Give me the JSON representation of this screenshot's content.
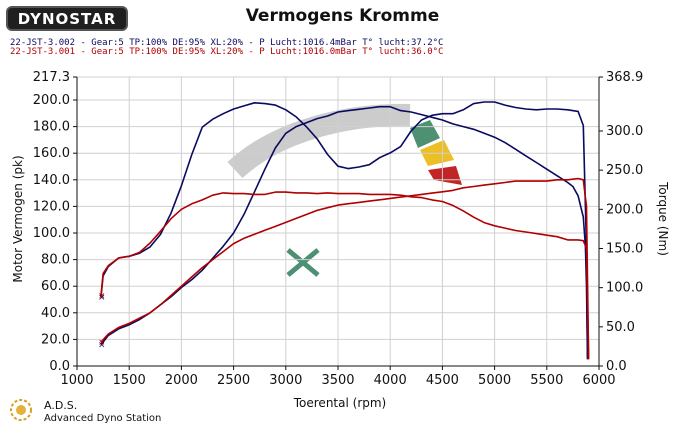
{
  "logo": {
    "text": "DYNOSTAR"
  },
  "footer": {
    "line1": "A.D.S.",
    "line2": "Advanced Dyno Station"
  },
  "chart_data": {
    "type": "line",
    "title": "Vermogens Kromme",
    "xlabel": "Toerental (rpm)",
    "ylabel": "Motor Vermogen (pk)",
    "y2label": "Torque (Nm)",
    "xlim": [
      1000,
      6000
    ],
    "ylim": [
      0.0,
      217.3
    ],
    "y2lim": [
      0.0,
      368.9
    ],
    "xticks": [
      "1000",
      "1500",
      "2000",
      "2500",
      "3000",
      "3500",
      "4000",
      "4500",
      "5000",
      "5500",
      "6000"
    ],
    "yticks": [
      "0.0",
      "20.0",
      "40.0",
      "60.0",
      "80.0",
      "100.0",
      "120.0",
      "140.0",
      "160.0",
      "180.0",
      "200.0",
      "217.3"
    ],
    "y2ticks": [
      "0.0",
      "50.0",
      "100.0",
      "150.0",
      "200.0",
      "250.0",
      "300.0",
      "368.9"
    ],
    "grid": true,
    "legend": [
      {
        "text": "22-JST-3.002 - Gear:5 TP:100% DE:95% XL:20%   - P Lucht:1016.4mBar T° lucht:37.2°C",
        "color": "#0a0a60"
      },
      {
        "text": "22-JST-3.001 - Gear:5 TP:100% DE:95% XL:20%   - P Lucht:1016.0mBar T° lucht:36.0°C",
        "color": "#b00000"
      }
    ],
    "series": [
      {
        "color": "#0a0a60",
        "axis": "y",
        "x": [
          1230,
          1300,
          1400,
          1500,
          1600,
          1700,
          1800,
          1900,
          2000,
          2100,
          2200,
          2300,
          2400,
          2500,
          2600,
          2700,
          2800,
          2900,
          3000,
          3100,
          3200,
          3300,
          3400,
          3500,
          3600,
          3700,
          3800,
          3900,
          4000,
          4100,
          4200,
          4300,
          4400,
          4500,
          4600,
          4700,
          4800,
          4900,
          5000,
          5100,
          5200,
          5300,
          5400,
          5500,
          5600,
          5700,
          5750,
          5800,
          5850,
          5870,
          5880,
          5890
        ],
        "values": [
          16,
          23,
          28,
          31,
          35,
          40,
          46,
          52,
          59,
          65,
          72,
          81,
          90,
          100,
          114,
          131,
          148,
          164,
          175,
          180,
          183,
          186,
          188,
          191,
          192,
          193,
          194,
          195,
          195,
          192,
          191,
          189,
          187,
          185,
          182,
          180,
          178,
          175,
          172,
          168,
          163,
          158,
          153,
          148,
          143,
          138,
          135,
          128,
          112,
          90,
          60,
          5
        ]
      },
      {
        "color": "#0a0a60",
        "axis": "y2",
        "x": [
          1230,
          1250,
          1300,
          1400,
          1500,
          1600,
          1700,
          1800,
          1900,
          2000,
          2100,
          2200,
          2300,
          2400,
          2500,
          2600,
          2700,
          2800,
          2900,
          3000,
          3100,
          3200,
          3300,
          3400,
          3500,
          3600,
          3700,
          3800,
          3900,
          4000,
          4100,
          4200,
          4300,
          4400,
          4500,
          4600,
          4700,
          4800,
          4900,
          5000,
          5100,
          5200,
          5300,
          5400,
          5500,
          5600,
          5700,
          5800,
          5850,
          5880,
          5890
        ],
        "values": [
          88,
          115,
          127,
          138,
          140,
          144,
          152,
          168,
          195,
          230,
          270,
          305,
          315,
          322,
          328,
          332,
          336,
          335,
          333,
          327,
          318,
          305,
          290,
          270,
          255,
          252,
          254,
          257,
          266,
          272,
          280,
          300,
          314,
          320,
          322,
          322,
          327,
          335,
          337,
          337,
          333,
          330,
          328,
          327,
          328,
          328,
          327,
          325,
          307,
          150,
          10
        ]
      },
      {
        "color": "#b00000",
        "axis": "y",
        "x": [
          1230,
          1300,
          1400,
          1500,
          1600,
          1700,
          1800,
          1900,
          2000,
          2100,
          2200,
          2300,
          2400,
          2500,
          2600,
          2700,
          2800,
          2900,
          3000,
          3100,
          3200,
          3300,
          3400,
          3500,
          3600,
          3700,
          3800,
          3900,
          4000,
          4100,
          4200,
          4300,
          4400,
          4500,
          4600,
          4700,
          4800,
          4900,
          5000,
          5100,
          5200,
          5300,
          5400,
          5500,
          5600,
          5700,
          5800,
          5850,
          5880,
          5900
        ],
        "values": [
          18,
          24,
          29,
          32,
          36,
          40,
          46,
          53,
          60,
          67,
          74,
          80,
          86,
          92,
          96,
          99,
          102,
          105,
          108,
          111,
          114,
          117,
          119,
          121,
          122,
          123,
          124,
          125,
          126,
          127,
          128,
          129,
          130,
          131,
          132,
          134,
          135,
          136,
          137,
          138,
          139,
          139,
          139,
          139,
          140,
          140,
          141,
          140,
          120,
          5
        ]
      },
      {
        "color": "#b00000",
        "axis": "y2",
        "x": [
          1230,
          1250,
          1300,
          1400,
          1500,
          1600,
          1700,
          1800,
          1900,
          2000,
          2100,
          2200,
          2300,
          2400,
          2500,
          2600,
          2700,
          2800,
          2900,
          3000,
          3100,
          3200,
          3300,
          3400,
          3500,
          3600,
          3700,
          3800,
          3900,
          4000,
          4100,
          4200,
          4300,
          4400,
          4500,
          4600,
          4700,
          4800,
          4900,
          5000,
          5100,
          5200,
          5300,
          5400,
          5500,
          5600,
          5700,
          5800,
          5850,
          5880,
          5900
        ],
        "values": [
          90,
          118,
          128,
          138,
          140,
          145,
          157,
          172,
          188,
          200,
          207,
          212,
          218,
          221,
          220,
          220,
          219,
          219,
          222,
          222,
          221,
          221,
          220,
          221,
          220,
          220,
          220,
          219,
          219,
          219,
          218,
          216,
          215,
          212,
          210,
          205,
          198,
          190,
          183,
          179,
          176,
          173,
          171,
          169,
          167,
          165,
          161,
          161,
          160,
          150,
          10
        ]
      }
    ]
  }
}
